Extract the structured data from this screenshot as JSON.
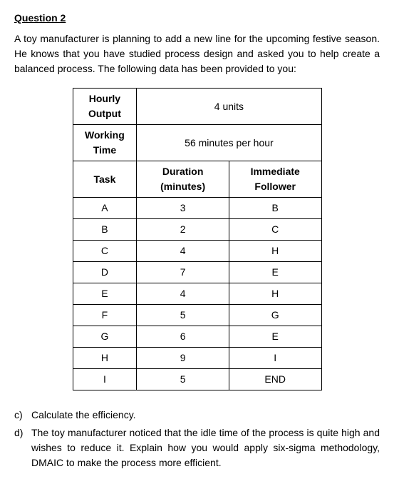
{
  "header": "Question 2",
  "intro": "A toy manufacturer is planning to add a new line for the upcoming festive season. He knows that you have studied process design and asked you to help create a balanced process. The following data has been provided to you:",
  "table": {
    "row1_label_l1": "Hourly",
    "row1_label_l2": "Output",
    "row1_value": "4 units",
    "row2_label_l1": "Working",
    "row2_label_l2": "Time",
    "row2_value": "56 minutes per hour",
    "task_header": "Task",
    "duration_header_l1": "Duration",
    "duration_header_l2": "(minutes)",
    "follower_header_l1": "Immediate",
    "follower_header_l2": "Follower",
    "rows": [
      {
        "task": "A",
        "duration": "3",
        "follower": "B"
      },
      {
        "task": "B",
        "duration": "2",
        "follower": "C"
      },
      {
        "task": "C",
        "duration": "4",
        "follower": "H"
      },
      {
        "task": "D",
        "duration": "7",
        "follower": "E"
      },
      {
        "task": "E",
        "duration": "4",
        "follower": "H"
      },
      {
        "task": "F",
        "duration": "5",
        "follower": "G"
      },
      {
        "task": "G",
        "duration": "6",
        "follower": "E"
      },
      {
        "task": "H",
        "duration": "9",
        "follower": "I"
      },
      {
        "task": "I",
        "duration": "5",
        "follower": "END"
      }
    ]
  },
  "questions": {
    "c_marker": "c)",
    "c_text": "Calculate the efficiency.",
    "d_marker": "d)",
    "d_text": "The toy manufacturer noticed that the idle time of the process is quite high and wishes to reduce it. Explain how you would apply six-sigma methodology, DMAIC to make the process more efficient."
  }
}
